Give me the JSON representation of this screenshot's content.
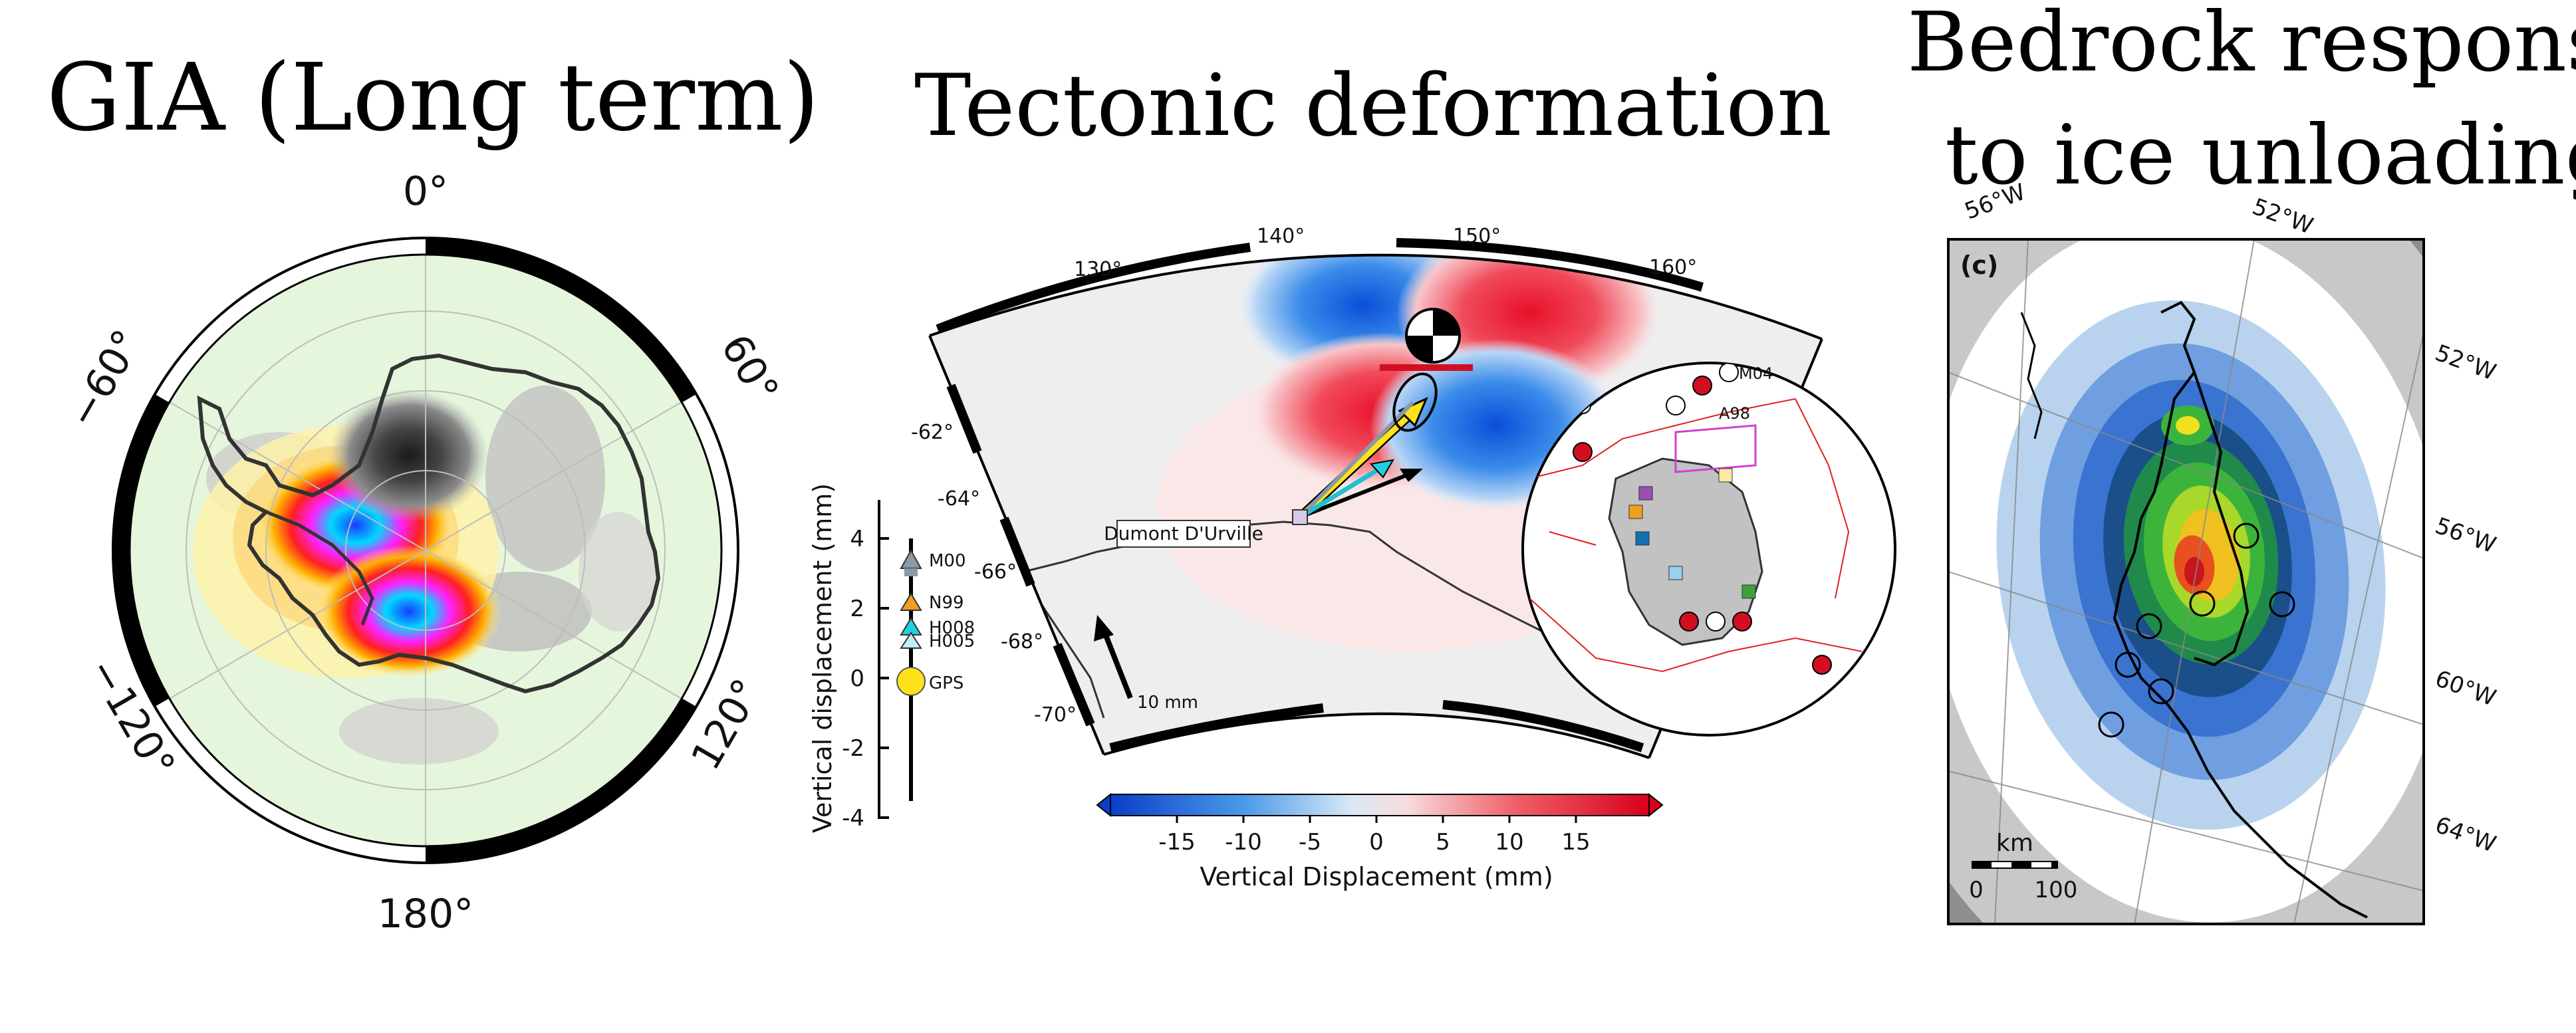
{
  "panels": {
    "gia": {
      "title": "GIA (Long term)",
      "labels": {
        "top": "0°",
        "right_up": "60°",
        "right_down": "120°",
        "bottom": "180°",
        "left_down": "−120°",
        "left_up": "−60°"
      }
    },
    "tectonic": {
      "title": "Tectonic deformation",
      "lon_labels": [
        "130°",
        "140°",
        "150°",
        "160°"
      ],
      "lat_labels": [
        "-62°",
        "-64°",
        "-66°",
        "-68°",
        "-70°"
      ],
      "station_label": "Dumont D'Urville",
      "scale_arrow_label": "10 mm",
      "inset_labels": [
        "M04",
        "A98"
      ],
      "colorbar": {
        "label": "Vertical Displacement (mm)",
        "ticks": [
          "-15",
          "-10",
          "-5",
          "0",
          "5",
          "10",
          "15"
        ]
      },
      "side_axis": {
        "label": "Vertical displacement (mm)",
        "ticks": [
          "4",
          "2",
          "0",
          "-2",
          "-4"
        ],
        "markers": [
          "M00",
          "N99",
          "H008",
          "H005",
          "GPS"
        ]
      }
    },
    "bedrock": {
      "title_line1": "Bedrock response",
      "title_line2": "to ice unloading",
      "panel_tag": "(c)",
      "lon_labels": [
        "56°W",
        "52°W",
        "52°W",
        "56°W",
        "60°W",
        "64°W"
      ],
      "scalebar": {
        "unit": "km",
        "min": "0",
        "max": "100"
      }
    }
  }
}
